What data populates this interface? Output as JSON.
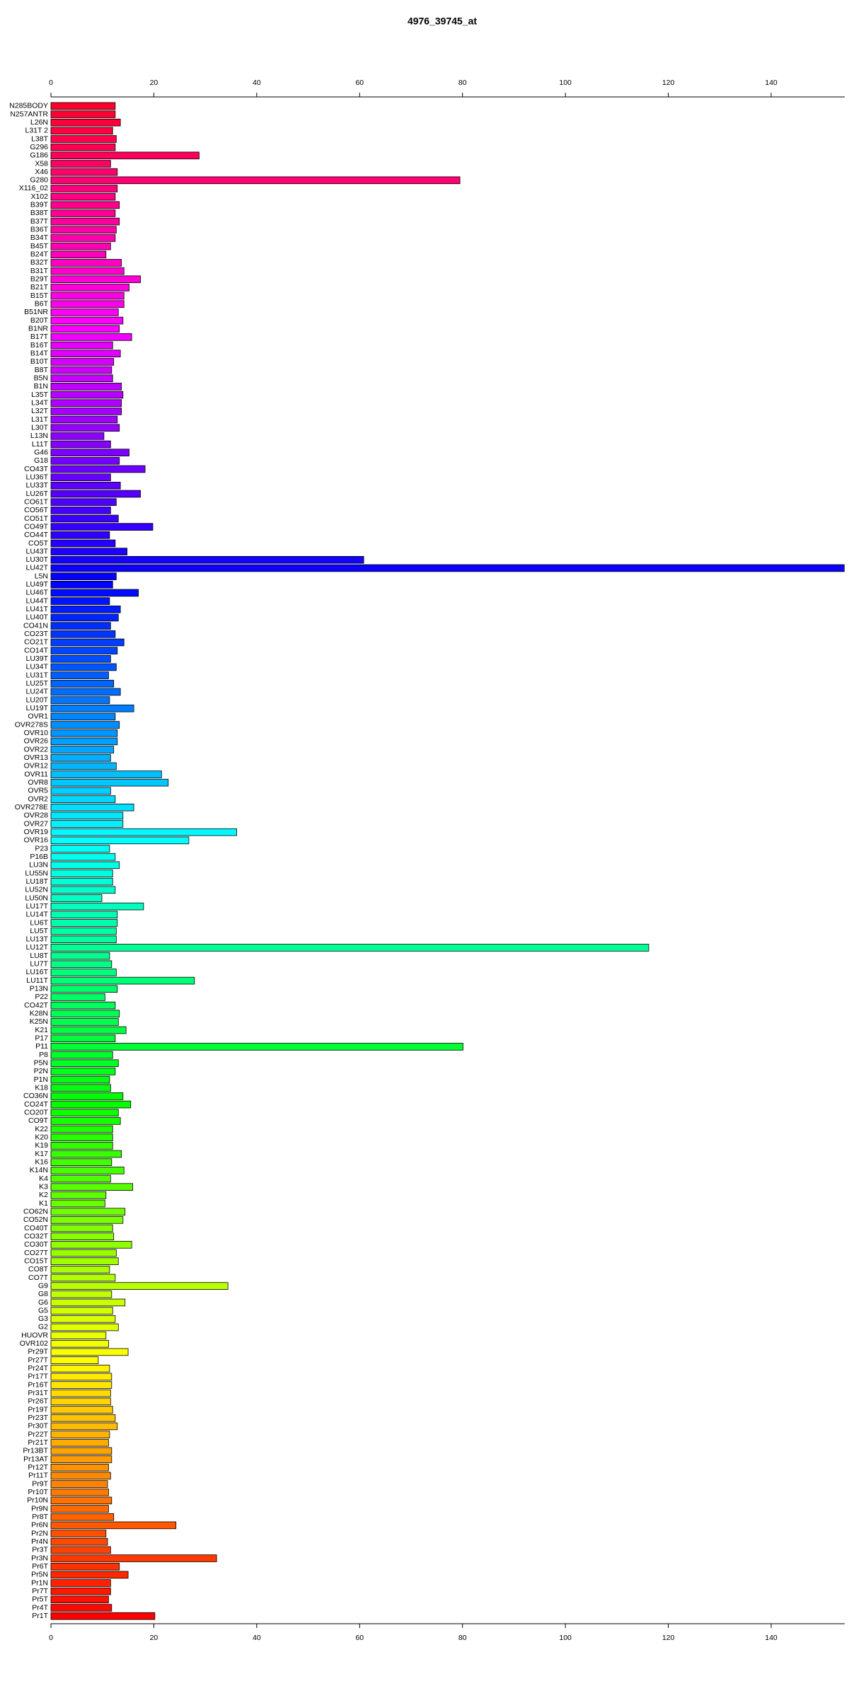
{
  "chart_data": {
    "type": "barh",
    "title": "4976_39745_at",
    "categories": [
      "N285BODY",
      "N257ANTR",
      "L26N",
      "L31T 2",
      "L38T",
      "G296",
      "G186",
      "X58",
      "X46",
      "G280",
      "X116_02",
      "X102",
      "B39T",
      "B38T",
      "B37T",
      "B36T",
      "B34T",
      "B45T",
      "B24T",
      "B32T",
      "B31T",
      "B29T",
      "B21T",
      "B15T",
      "B6T",
      "B51NR",
      "B20T",
      "B1NR",
      "B17T",
      "B16T",
      "B14T",
      "B10T",
      "B8T",
      "B5N",
      "B1N",
      "L35T",
      "L34T",
      "L32T",
      "L31T",
      "L30T",
      "L13N",
      "L11T",
      "G46",
      "G18",
      "CO43T",
      "LU36T",
      "LU33T",
      "LU26T",
      "CO61T",
      "CO56T",
      "CO51T",
      "CO49T",
      "CO44T",
      "CO5T",
      "LU43T",
      "LU30T",
      "LU42T",
      "L5N",
      "LU49T",
      "LU46T",
      "LU44T",
      "LU41T",
      "LU40T",
      "CO41N",
      "CO23T",
      "CO21T",
      "CO14T",
      "LU39T",
      "LU34T",
      "LU31T",
      "LU25T",
      "LU24T",
      "LU20T",
      "LU19T",
      "OVR1",
      "OVR278S",
      "OVR10",
      "OVR26",
      "OVR22",
      "OVR13",
      "OVR12",
      "OVR11",
      "OVR8",
      "OVR5",
      "OVR2",
      "OVR278E",
      "OVR28",
      "OVR27",
      "OVR19",
      "OVR16",
      "P23",
      "P16B",
      "LU3N",
      "LU55N",
      "LU18T",
      "LU52N",
      "LU50N",
      "LU17T",
      "LU14T",
      "LU6T",
      "LU5T",
      "LU13T",
      "LU12T",
      "LU8T",
      "LU7T",
      "LU16T",
      "LU11T",
      "P13N",
      "P22",
      "CO42T",
      "K28N",
      "K25N",
      "K21",
      "P17",
      "P11",
      "P8",
      "P5N",
      "P2N",
      "P1N",
      "K18",
      "CO36N",
      "CO24T",
      "CO20T",
      "CO9T",
      "K22",
      "K20",
      "K19",
      "K17",
      "K16",
      "K14N",
      "K4",
      "K3",
      "K2",
      "K1",
      "CO62N",
      "CO52N",
      "CO40T",
      "CO32T",
      "CO30T",
      "CO27T",
      "CO15T",
      "CO8T",
      "CO7T",
      "G9",
      "G8",
      "G6",
      "G5",
      "G3",
      "G2",
      "HUOVR",
      "OVR102",
      "Pr29T",
      "Pr27T",
      "Pr24T",
      "Pr17T",
      "Pr16T",
      "Pr31T",
      "Pr26T",
      "Pr19T",
      "Pr23T",
      "Pr30T",
      "Pr22T",
      "Pr21T",
      "Pr13BT",
      "Pr13AT",
      "Pr12T",
      "Pr11T",
      "Pr9T",
      "Pr10T",
      "Pr10N",
      "Pr9N",
      "Pr8T",
      "Pr6N",
      "Pr2N",
      "Pr4N",
      "Pr3T",
      "Pr3N",
      "Pr6T",
      "Pr5N",
      "Pr1N",
      "Pr7T",
      "Pr5T",
      "Pr4T",
      "Pr1T"
    ],
    "values": [
      12.5,
      12.5,
      13.5,
      12,
      12.7,
      12.5,
      28.8,
      11.6,
      12.9,
      79.5,
      12.9,
      12.5,
      13.3,
      12.5,
      13.3,
      12.7,
      12.5,
      11.6,
      10.7,
      13.7,
      14.2,
      17.4,
      15.2,
      14.2,
      14.2,
      13.1,
      14,
      13.3,
      15.7,
      12,
      13.5,
      12.2,
      11.8,
      12,
      13.7,
      14,
      13.7,
      13.7,
      12.9,
      13.3,
      10.3,
      11.6,
      15.2,
      13.3,
      18.3,
      11.6,
      13.5,
      17.4,
      12.7,
      11.6,
      13.1,
      19.8,
      11.4,
      12.5,
      14.8,
      60.8,
      154.2,
      12.7,
      12,
      17,
      11.4,
      13.5,
      13.1,
      11.6,
      12.5,
      14.2,
      12.9,
      11.6,
      12.7,
      11.2,
      12.2,
      13.5,
      11.4,
      16.1,
      12.5,
      13.3,
      12.9,
      12.9,
      12.2,
      11.6,
      12.7,
      21.5,
      22.8,
      11.6,
      12.5,
      16.1,
      14,
      14,
      36.1,
      26.8,
      11.4,
      12.5,
      13.3,
      12,
      12,
      12.5,
      9.9,
      18,
      12.9,
      12.9,
      12.7,
      12.7,
      116.2,
      11.4,
      11.8,
      12.7,
      27.9,
      12.9,
      10.5,
      12.5,
      13.3,
      13.1,
      14.6,
      12.5,
      80.1,
      12,
      13.1,
      12.5,
      11.4,
      11.6,
      14,
      15.5,
      13.1,
      13.5,
      12,
      12,
      12,
      13.7,
      11.8,
      14.2,
      11.6,
      15.9,
      10.7,
      10.5,
      14.4,
      14,
      12,
      12.2,
      15.7,
      12.7,
      13.1,
      11.4,
      12.5,
      34.4,
      11.8,
      14.4,
      12,
      12.5,
      13.1,
      10.7,
      11.2,
      15,
      9.2,
      11.4,
      11.8,
      11.8,
      11.6,
      11.6,
      12,
      12.5,
      12.9,
      11.4,
      11.2,
      11.8,
      11.8,
      11.2,
      11.6,
      11,
      11.2,
      11.8,
      11.2,
      12.2,
      24.3,
      10.7,
      11,
      11.6,
      32.2,
      13.3,
      15,
      11.6,
      11.6,
      11.2,
      11.8,
      20.2
    ],
    "hue_range": [
      350,
      0
    ],
    "xlim": [
      0,
      154.3
    ],
    "xticks": [
      0,
      20,
      40,
      60,
      80,
      100,
      120,
      140
    ]
  }
}
